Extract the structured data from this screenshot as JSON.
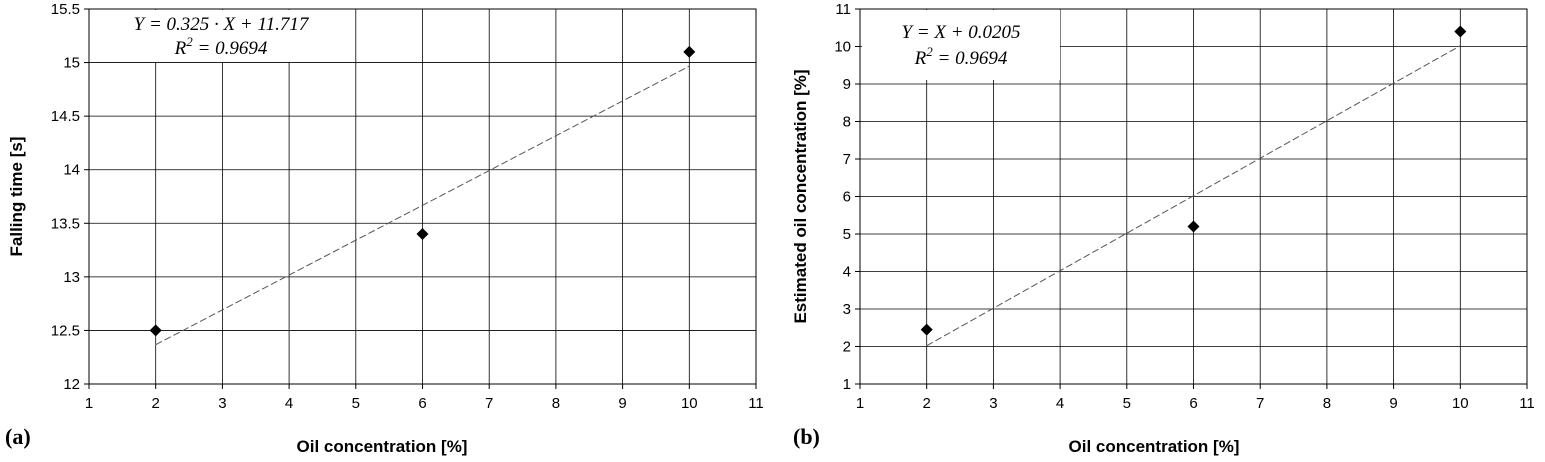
{
  "chart_data": [
    {
      "type": "scatter",
      "panel_label": "(a)",
      "title": "",
      "xlabel": "Oil concentration [%]",
      "ylabel": "Falling time [s]",
      "xlim": [
        1,
        11
      ],
      "ylim": [
        12,
        15.5
      ],
      "xticks": [
        1,
        2,
        3,
        4,
        5,
        6,
        7,
        8,
        9,
        10,
        11
      ],
      "yticks": [
        12,
        12.5,
        13,
        13.5,
        14,
        14.5,
        15,
        15.5
      ],
      "ytick_labels": [
        "12",
        "12.5",
        "13",
        "13.5",
        "14",
        "14.5",
        "15",
        "15.5"
      ],
      "grid": true,
      "series": [
        {
          "x": [
            2,
            6,
            10
          ],
          "y": [
            12.5,
            13.4,
            15.1
          ],
          "marker": "diamond"
        }
      ],
      "trendline": {
        "slope": 0.325,
        "intercept": 11.717,
        "x_range": [
          2,
          10
        ],
        "style": "dashed"
      },
      "annotation": {
        "equation": "Y = 0.325 · X + 11.717",
        "r2_label": "R",
        "r2_sup": "2",
        "r2_value": " = 0.9694"
      }
    },
    {
      "type": "scatter",
      "panel_label": "(b)",
      "title": "",
      "xlabel": "Oil concentration [%]",
      "ylabel": "Estimated oil concentration [%]",
      "xlim": [
        1,
        11
      ],
      "ylim": [
        1,
        11
      ],
      "xticks": [
        1,
        2,
        3,
        4,
        5,
        6,
        7,
        8,
        9,
        10,
        11
      ],
      "yticks": [
        1,
        2,
        3,
        4,
        5,
        6,
        7,
        8,
        9,
        10,
        11
      ],
      "ytick_labels": [
        "1",
        "2",
        "3",
        "4",
        "5",
        "6",
        "7",
        "8",
        "9",
        "10",
        "11"
      ],
      "grid": true,
      "series": [
        {
          "x": [
            2,
            6,
            10
          ],
          "y": [
            2.45,
            5.2,
            10.4
          ],
          "marker": "diamond"
        }
      ],
      "trendline": {
        "slope": 1,
        "intercept": 0.0205,
        "x_range": [
          2,
          10
        ],
        "style": "dashed"
      },
      "annotation": {
        "equation": "Y = X + 0.0205",
        "r2_label": "R",
        "r2_sup": "2",
        "r2_value": " = 0.9694"
      }
    }
  ]
}
